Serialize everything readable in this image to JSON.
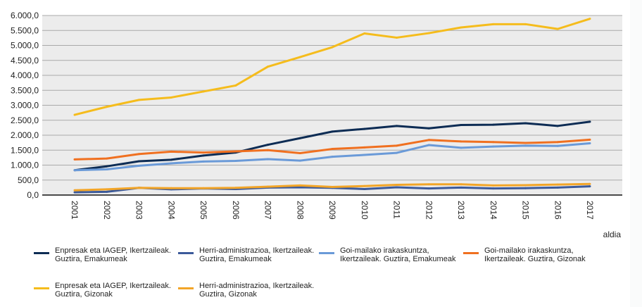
{
  "chart_data": {
    "type": "line",
    "title": "",
    "xlabel": "aldia",
    "ylabel": "",
    "ylim": [
      0,
      6000
    ],
    "yticks": [
      0,
      500,
      1000,
      1500,
      2000,
      2500,
      3000,
      3500,
      4000,
      4500,
      5000,
      5500,
      6000
    ],
    "ytick_labels": [
      "0,0",
      "500,0",
      "1.000,0",
      "1.500,0",
      "2.000,0",
      "2.500,0",
      "3.000,0",
      "3.500,0",
      "4.000,0",
      "4.500,0",
      "5.000,0",
      "5.500,0",
      "6.000,0"
    ],
    "categories": [
      "2001",
      "2002",
      "2003",
      "2004",
      "2005",
      "2006",
      "2007",
      "2008",
      "2009",
      "2010",
      "2011",
      "2012",
      "2013",
      "2014",
      "2015",
      "2016",
      "2017"
    ],
    "grid": true,
    "legend_position": "bottom",
    "series": [
      {
        "name": "Enpresak eta IAGEP, Ikertzaileak. Guztira, Emakumeak",
        "legend_lines": [
          "Enpresak eta IAGEP, Ikertzaileak.",
          "Guztira, Emakumeak"
        ],
        "color": "#0d2c54",
        "values": [
          830,
          960,
          1130,
          1180,
          1320,
          1420,
          1680,
          1900,
          2120,
          2210,
          2310,
          2230,
          2340,
          2350,
          2400,
          2310,
          2450
        ]
      },
      {
        "name": "Herri-administrazioa, Ikertzaileak. Guztira, Emakumeak",
        "legend_lines": [
          "Herri-administrazioa, Ikertzaileak.",
          "Guztira, Emakumeak"
        ],
        "color": "#3c5a9a",
        "values": [
          90,
          110,
          240,
          190,
          220,
          200,
          250,
          260,
          240,
          200,
          260,
          220,
          250,
          220,
          230,
          250,
          290
        ]
      },
      {
        "name": "Goi-mailako irakaskuntza, Ikertzaileak. Guztira, Emakumeak",
        "legend_lines": [
          "Goi-mailako irakaskuntza,",
          "Ikertzaileak. Guztira, Emakumeak"
        ],
        "color": "#6a9ad8",
        "values": [
          830,
          860,
          980,
          1060,
          1120,
          1140,
          1200,
          1150,
          1280,
          1340,
          1410,
          1670,
          1580,
          1620,
          1650,
          1640,
          1730
        ]
      },
      {
        "name": "Goi-mailako irakaskuntza, Ikertzaileak. Guztira, Gizonak",
        "legend_lines": [
          "Goi-mailako irakaskuntza,",
          "Ikertzaileak. Guztira, Gizonak"
        ],
        "color": "#f07020",
        "values": [
          1190,
          1220,
          1370,
          1450,
          1420,
          1460,
          1500,
          1400,
          1540,
          1590,
          1650,
          1840,
          1790,
          1770,
          1740,
          1770,
          1850
        ]
      },
      {
        "name": "Enpresak eta IAGEP, Ikertzaileak. Guztira, Gizonak",
        "legend_lines": [
          "Enpresak eta IAGEP, Ikertzaileak.",
          "Guztira, Gizonak"
        ],
        "color": "#f5bc1c",
        "values": [
          2680,
          2950,
          3180,
          3260,
          3460,
          3660,
          4290,
          4610,
          4940,
          5400,
          5260,
          5410,
          5600,
          5710,
          5710,
          5550,
          5890
        ]
      },
      {
        "name": "Herri-administrazioa, Ikertzaileak. Guztira, Gizonak",
        "legend_lines": [
          "Herri-administrazioa, Ikertzaileak.",
          "Guztira, Gizonak"
        ],
        "color": "#f2a528",
        "values": [
          160,
          190,
          240,
          230,
          230,
          240,
          280,
          320,
          270,
          300,
          340,
          360,
          360,
          320,
          330,
          350,
          370
        ]
      }
    ],
    "colors": {
      "plot_background": "#ececec",
      "grid": "#aaaaaa",
      "axis": "#111111"
    }
  }
}
